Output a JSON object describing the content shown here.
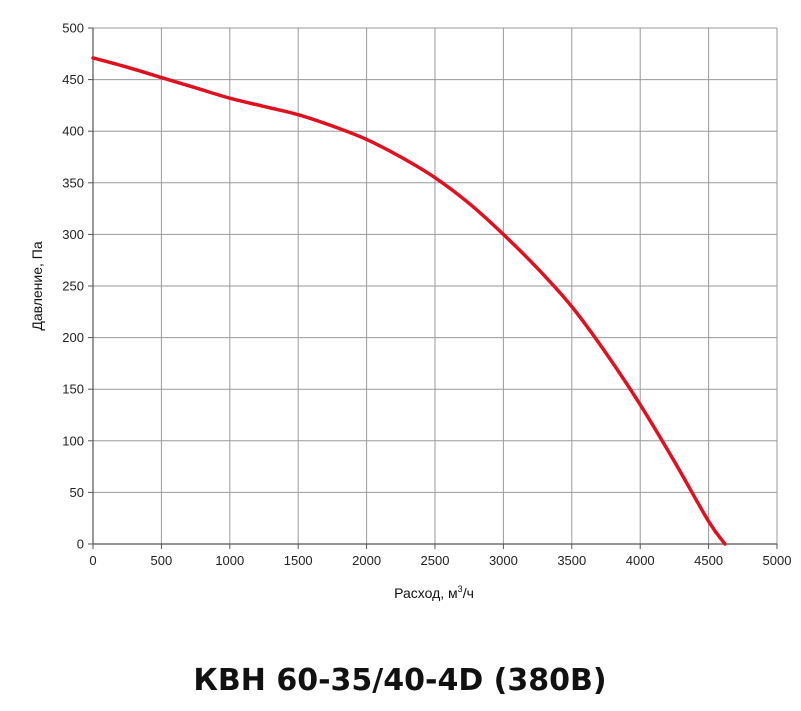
{
  "chart_data": {
    "type": "line",
    "title": "КВН 60-35/40-4D (380В)",
    "xlabel": "Расход, м",
    "xlabel_sup": "3",
    "xlabel_suffix": "/ч",
    "ylabel": "Давление, Па",
    "xlim": [
      0,
      5000
    ],
    "ylim": [
      0,
      500
    ],
    "xticks": [
      0,
      500,
      1000,
      1500,
      2000,
      2500,
      3000,
      3500,
      4000,
      4500,
      5000
    ],
    "yticks": [
      0,
      50,
      100,
      150,
      200,
      250,
      300,
      350,
      400,
      450,
      500
    ],
    "grid": true,
    "legend": "none",
    "series": [
      {
        "color": "#e0101e",
        "x": [
          0,
          250,
          500,
          750,
          1000,
          1250,
          1500,
          1750,
          2000,
          2250,
          2500,
          2750,
          3000,
          3250,
          3500,
          3750,
          4000,
          4250,
          4500,
          4620
        ],
        "y": [
          471,
          462,
          452,
          442,
          432,
          424,
          416,
          405,
          392,
          375,
          355,
          330,
          300,
          267,
          230,
          185,
          135,
          80,
          22,
          0
        ]
      }
    ]
  }
}
